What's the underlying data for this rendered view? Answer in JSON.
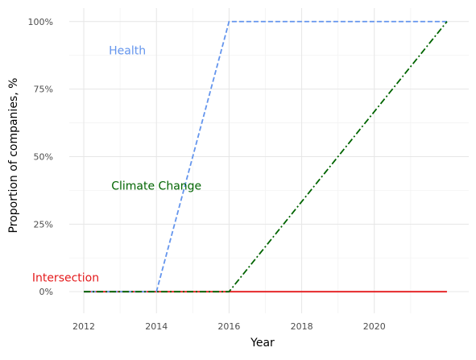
{
  "chart_data": {
    "type": "line",
    "xlabel": "Year",
    "ylabel": "Proportion of companies, %",
    "xlim": [
      2011.6,
      2022.6
    ],
    "ylim": [
      -8,
      105
    ],
    "x_ticks": [
      2012,
      2014,
      2016,
      2018,
      2020
    ],
    "x_tick_labels": [
      "2012",
      "2014",
      "2016",
      "2018",
      "2020"
    ],
    "y_ticks": [
      0,
      25,
      50,
      75,
      100
    ],
    "y_tick_labels": [
      "0%",
      "25%",
      "50%",
      "75%",
      "100%"
    ],
    "grid": true,
    "legend": "none",
    "series": [
      {
        "name": "Intersection",
        "color": "#e41a1c",
        "style": "solid",
        "x": [
          2012,
          2022
        ],
        "y": [
          0,
          0
        ]
      },
      {
        "name": "Health",
        "color": "#6495ed",
        "style": "dashed",
        "x": [
          2012,
          2014,
          2016,
          2022
        ],
        "y": [
          0,
          0,
          100,
          100
        ]
      },
      {
        "name": "Climate Change",
        "color": "#006400",
        "style": "dashdot",
        "x": [
          2012,
          2016,
          2022
        ],
        "y": [
          0,
          0,
          100
        ]
      }
    ],
    "annotations": [
      {
        "text": "Health",
        "color": "#6495ed",
        "x": 2013.2,
        "y": 89
      },
      {
        "text": "Climate Change",
        "color": "#006400",
        "x": 2014.0,
        "y": 39
      },
      {
        "text": "Intersection",
        "color": "#e41a1c",
        "x": 2011.5,
        "y": 5
      }
    ]
  }
}
